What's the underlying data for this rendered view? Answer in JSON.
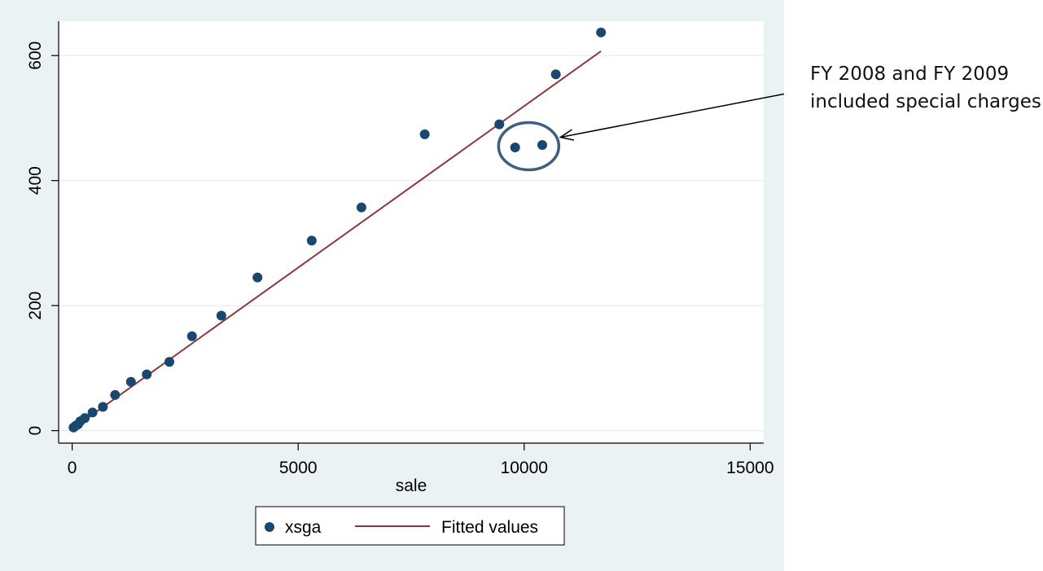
{
  "colors": {
    "outer_background": "#eaf2f3",
    "plot_background": "#ffffff",
    "gridline": "#e4ecee",
    "marker": "#1a476f",
    "fitted_line": "#90353b",
    "circle_highlight": "#3e5f80",
    "arrow": "#000000"
  },
  "chart_data": {
    "type": "scatter",
    "title": "",
    "xlabel": "sale",
    "ylabel": "",
    "xlim": [
      -300,
      15300
    ],
    "ylim": [
      -20,
      655
    ],
    "xticks": [
      0,
      5000,
      10000,
      15000
    ],
    "xtick_labels": [
      "0",
      "5000",
      "10000",
      "15000"
    ],
    "yticks": [
      0,
      200,
      400,
      600
    ],
    "ytick_labels": [
      "0",
      "200",
      "400",
      "600"
    ],
    "grid": "horizontal",
    "legend_position": "bottom-center",
    "series": [
      {
        "name": "xsga",
        "kind": "scatter",
        "marker": "filled-circle",
        "color_key": "marker",
        "points": [
          [
            30,
            5
          ],
          [
            80,
            8
          ],
          [
            130,
            10
          ],
          [
            180,
            15
          ],
          [
            280,
            20
          ],
          [
            450,
            29
          ],
          [
            680,
            38
          ],
          [
            950,
            57
          ],
          [
            1300,
            78
          ],
          [
            1650,
            90
          ],
          [
            2150,
            110
          ],
          [
            2650,
            151
          ],
          [
            3300,
            184
          ],
          [
            4100,
            245
          ],
          [
            5300,
            304
          ],
          [
            6400,
            357
          ],
          [
            7800,
            474
          ],
          [
            9450,
            490
          ],
          [
            9800,
            453
          ],
          [
            10400,
            457
          ],
          [
            10700,
            570
          ],
          [
            11700,
            637
          ]
        ]
      },
      {
        "name": "Fitted values",
        "kind": "line",
        "color_key": "fitted_line",
        "points": [
          [
            30,
            4
          ],
          [
            11700,
            607
          ]
        ]
      }
    ],
    "annotation": {
      "lines": [
        "FY 2008 and FY 2009",
        "included special charges"
      ],
      "highlighted_points": [
        [
          9800,
          453
        ],
        [
          10400,
          457
        ]
      ]
    }
  }
}
